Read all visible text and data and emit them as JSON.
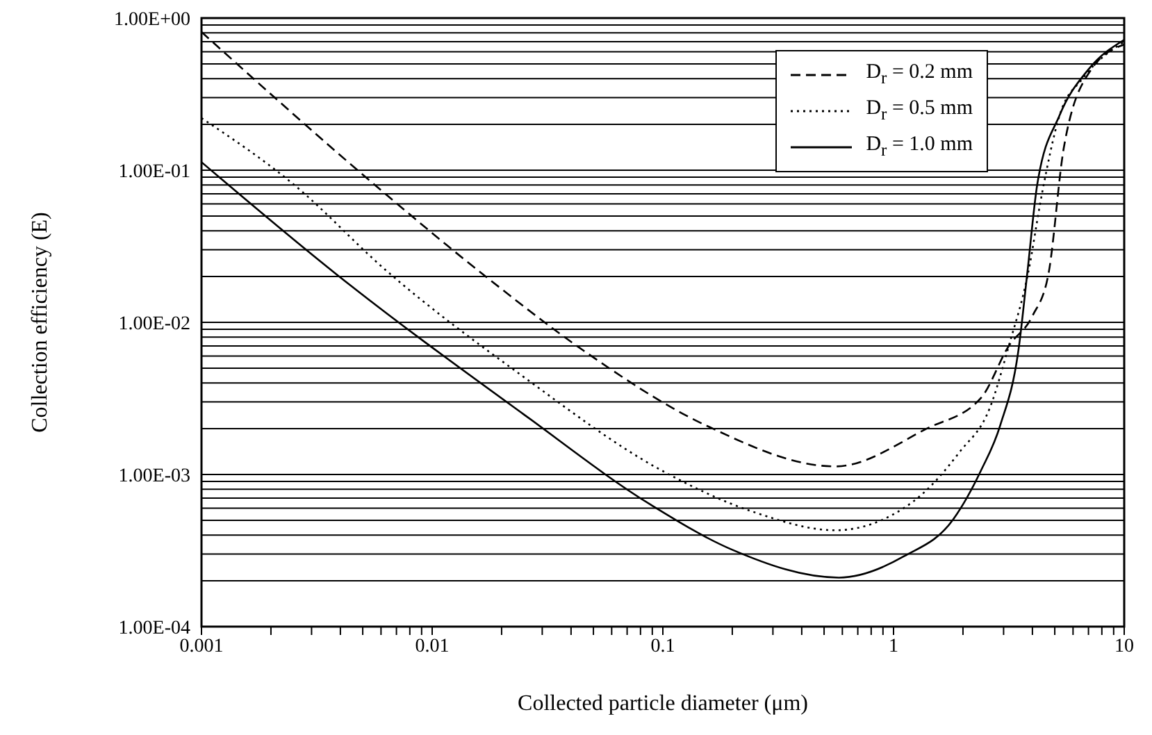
{
  "chart_data": {
    "type": "line",
    "xlabel": "Collected particle diameter (μm)",
    "ylabel": "Collection efficiency (E)",
    "log": "xy",
    "grid": "y",
    "legend": "top right",
    "xlim": [
      0.001,
      10
    ],
    "ylim": [
      0.0001,
      1
    ],
    "xticks": [
      0.001,
      {
        "value": 0.002,
        "label": null
      },
      {
        "value": 0.003,
        "label": null
      },
      {
        "value": 0.004,
        "label": null
      },
      {
        "value": 0.005,
        "label": null
      },
      {
        "value": 0.006,
        "label": null
      },
      {
        "value": 0.007,
        "label": null
      },
      {
        "value": 0.008,
        "label": null
      },
      {
        "value": 0.009,
        "label": null
      },
      0.01,
      {
        "value": 0.02,
        "label": null
      },
      {
        "value": 0.03,
        "label": null
      },
      {
        "value": 0.04,
        "label": null
      },
      {
        "value": 0.05,
        "label": null
      },
      {
        "value": 0.06,
        "label": null
      },
      {
        "value": 0.07,
        "label": null
      },
      {
        "value": 0.08,
        "label": null
      },
      {
        "value": 0.09,
        "label": null
      },
      0.1,
      {
        "value": 0.2,
        "label": null
      },
      {
        "value": 0.3,
        "label": null
      },
      {
        "value": 0.4,
        "label": null
      },
      {
        "value": 0.5,
        "label": null
      },
      {
        "value": 0.6,
        "label": null
      },
      {
        "value": 0.7,
        "label": null
      },
      {
        "value": 0.8,
        "label": null
      },
      {
        "value": 0.9,
        "label": null
      },
      1,
      {
        "value": 2,
        "label": null
      },
      {
        "value": 3,
        "label": null
      },
      {
        "value": 4,
        "label": null
      },
      {
        "value": 5,
        "label": null
      },
      {
        "value": 6,
        "label": null
      },
      {
        "value": 7,
        "label": null
      },
      {
        "value": 8,
        "label": null
      },
      {
        "value": 9,
        "label": null
      },
      10
    ],
    "yticks": [
      {
        "value": 0.0001,
        "label": "1.00E-04"
      },
      {
        "value": 0.0002,
        "label": null
      },
      {
        "value": 0.0003,
        "label": null
      },
      {
        "value": 0.0004,
        "label": null
      },
      {
        "value": 0.0005,
        "label": null
      },
      {
        "value": 0.0006,
        "label": null
      },
      {
        "value": 0.0007,
        "label": null
      },
      {
        "value": 0.0008,
        "label": null
      },
      {
        "value": 0.0009,
        "label": null
      },
      {
        "value": 0.001,
        "label": "1.00E-03"
      },
      {
        "value": 0.002,
        "label": null
      },
      {
        "value": 0.003,
        "label": null
      },
      {
        "value": 0.004,
        "label": null
      },
      {
        "value": 0.005,
        "label": null
      },
      {
        "value": 0.006,
        "label": null
      },
      {
        "value": 0.007,
        "label": null
      },
      {
        "value": 0.008,
        "label": null
      },
      {
        "value": 0.009,
        "label": null
      },
      {
        "value": 0.01,
        "label": "1.00E-02"
      },
      {
        "value": 0.02,
        "label": null
      },
      {
        "value": 0.03,
        "label": null
      },
      {
        "value": 0.04,
        "label": null
      },
      {
        "value": 0.05,
        "label": null
      },
      {
        "value": 0.06,
        "label": null
      },
      {
        "value": 0.07,
        "label": null
      },
      {
        "value": 0.08,
        "label": null
      },
      {
        "value": 0.09,
        "label": null
      },
      {
        "value": 0.1,
        "label": "1.00E-01"
      },
      {
        "value": 0.2,
        "label": null
      },
      {
        "value": 0.3,
        "label": null
      },
      {
        "value": 0.4,
        "label": null
      },
      {
        "value": 0.5,
        "label": null
      },
      {
        "value": 0.6,
        "label": null
      },
      {
        "value": 0.7,
        "label": null
      },
      {
        "value": 0.8,
        "label": null
      },
      {
        "value": 0.9,
        "label": null
      },
      {
        "value": 1,
        "label": "1.00E+00"
      }
    ],
    "series": [
      {
        "name": "D$_{r}$ = 0.2 mm",
        "color": "#000000",
        "line_style": "dashed",
        "x": [
          0.001,
          0.0057,
          0.0164,
          0.0448,
          0.154,
          0.56,
          1.39,
          2.4,
          3.16,
          4.0,
          4.7,
          5.47,
          7.2,
          10
        ],
        "values": [
          0.81,
          0.079,
          0.021,
          0.0066,
          0.0021,
          0.00113,
          0.002,
          0.0032,
          0.007,
          0.011,
          0.021,
          0.14,
          0.46,
          0.67
        ]
      },
      {
        "name": "D$_{r}$ = 0.5 mm",
        "color": "#000000",
        "line_style": "dotted",
        "x": [
          0.001,
          0.0025,
          0.0063,
          0.0248,
          0.098,
          0.245,
          0.56,
          1.21,
          1.93,
          2.63,
          3.16,
          3.83,
          4.4,
          5.25,
          6.6,
          10
        ],
        "values": [
          0.22,
          0.081,
          0.022,
          0.0044,
          0.00107,
          0.00057,
          0.00043,
          0.00066,
          0.0014,
          0.0028,
          0.007,
          0.021,
          0.07,
          0.23,
          0.4,
          0.7
        ]
      },
      {
        "name": "D$_{r}$ = 1.0 mm",
        "color": "#000000",
        "line_style": "solid",
        "x": [
          0.001,
          0.0038,
          0.0248,
          0.089,
          0.2,
          0.58,
          1.11,
          1.82,
          2.4,
          2.9,
          3.5,
          3.8,
          4.2,
          5.25,
          7,
          10
        ],
        "values": [
          0.113,
          0.021,
          0.0025,
          0.00063,
          0.00032,
          0.00021,
          0.00029,
          0.00051,
          0.00107,
          0.0021,
          0.007,
          0.021,
          0.081,
          0.23,
          0.46,
          0.72
        ]
      }
    ]
  }
}
